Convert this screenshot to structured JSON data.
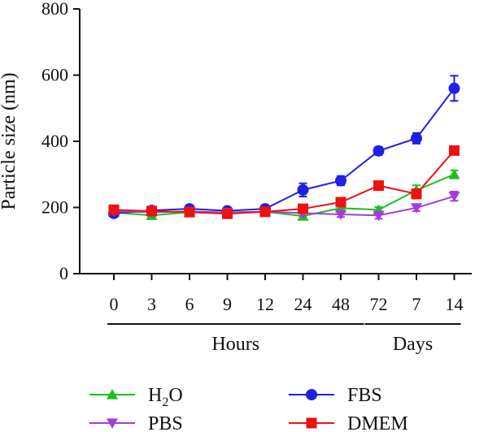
{
  "chart_data": {
    "type": "line",
    "ylabel": "Particle size (nm)",
    "ylim": [
      0,
      800
    ],
    "yticks": [
      0,
      200,
      400,
      600,
      800
    ],
    "categories": [
      "0",
      "3",
      "6",
      "9",
      "12",
      "24",
      "48",
      "72",
      "7",
      "14"
    ],
    "groups": [
      {
        "label": "Hours",
        "from": 0,
        "to": 7
      },
      {
        "label": "Days",
        "from": 7,
        "to": 9
      }
    ],
    "series": [
      {
        "name": "H2O",
        "color": "#1dbf1d",
        "marker": "triangle-up",
        "values": [
          185,
          176,
          186,
          185,
          187,
          174,
          198,
          193,
          252,
          300
        ],
        "errors": [
          5,
          5,
          5,
          5,
          5,
          8,
          10,
          8,
          15,
          12
        ]
      },
      {
        "name": "FBS",
        "color": "#1f1fe6",
        "marker": "circle",
        "values": [
          182,
          191,
          196,
          190,
          196,
          253,
          281,
          371,
          409,
          560
        ],
        "errors": [
          8,
          6,
          6,
          6,
          6,
          20,
          14,
          12,
          16,
          38
        ]
      },
      {
        "name": "PBS",
        "color": "#a43ae0",
        "marker": "triangle-down",
        "values": [
          188,
          186,
          188,
          185,
          187,
          183,
          179,
          176,
          199,
          234
        ],
        "errors": [
          5,
          5,
          5,
          5,
          5,
          8,
          8,
          10,
          10,
          14
        ]
      },
      {
        "name": "DMEM",
        "color": "#ee1111",
        "marker": "square",
        "values": [
          193,
          189,
          186,
          181,
          187,
          196,
          216,
          266,
          241,
          372
        ],
        "errors": [
          5,
          5,
          5,
          5,
          5,
          8,
          10,
          10,
          14,
          8
        ]
      }
    ],
    "legend": {
      "placement": "bottom",
      "entries": [
        {
          "series": 0,
          "text": "H",
          "sub": "2",
          "tail": "O"
        },
        {
          "series": 1,
          "text": "FBS"
        },
        {
          "series": 2,
          "text": "PBS"
        },
        {
          "series": 3,
          "text": "DMEM"
        }
      ]
    }
  }
}
